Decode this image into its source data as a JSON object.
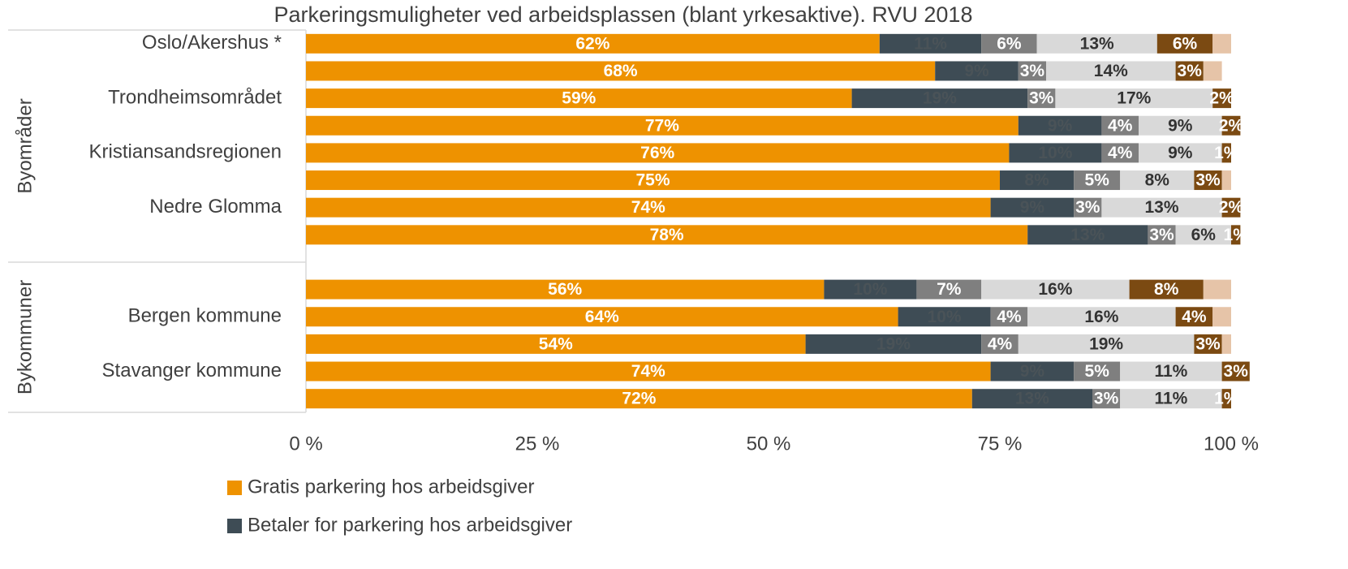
{
  "chart_data": {
    "type": "stacked-barh",
    "title": "Parkeringsmuligheter ved arbeidsplassen (blant yrkesaktive). RVU 2018",
    "categories": [
      "Oslo/Akershus *",
      null,
      "Trondheimsområdet",
      null,
      "Kristiansandsregionen",
      null,
      "Nedre Glomma",
      null,
      null,
      null,
      "Bergen kommune",
      null,
      "Stavanger kommune",
      null
    ],
    "groups": [
      {
        "label": "Byområder",
        "rows": [
          0,
          7
        ]
      },
      {
        "label": "Bykommuner",
        "rows": [
          9,
          13
        ]
      }
    ],
    "series": [
      {
        "name": "Gratis parkering hos arbeidsgiver",
        "color": "#ee9200",
        "values": [
          62,
          68,
          59,
          77,
          76,
          75,
          74,
          78,
          null,
          56,
          64,
          54,
          74,
          72
        ],
        "value_labels": [
          "62%",
          "68%",
          "59%",
          "77%",
          "76%",
          "75%",
          "74%",
          "78%",
          null,
          "56%",
          "64%",
          "54%",
          "74%",
          "72%"
        ]
      },
      {
        "name": "Betaler for parkering hos arbeidsgiver",
        "color": "#3e4c55",
        "values": [
          11,
          9,
          19,
          9,
          10,
          8,
          9,
          13,
          null,
          10,
          10,
          19,
          9,
          13
        ],
        "value_labels": [
          "11%",
          "9%",
          "19%",
          "9%",
          "10%",
          "8%",
          "9%",
          "13%",
          null,
          "10%",
          "10%",
          "19%",
          "9%",
          "13%"
        ]
      },
      {
        "color": "#7f7f7f",
        "values": [
          6,
          3,
          3,
          4,
          4,
          5,
          3,
          3,
          null,
          7,
          4,
          4,
          5,
          3
        ],
        "value_labels": [
          "6%",
          "3%",
          "3%",
          "4%",
          "4%",
          "5%",
          "3%",
          "3%",
          null,
          "7%",
          "4%",
          "4%",
          "5%",
          "3%"
        ]
      },
      {
        "color": "#d9d9d9",
        "values": [
          13,
          14,
          17,
          9,
          9,
          8,
          13,
          6,
          null,
          16,
          16,
          19,
          11,
          11
        ],
        "value_labels": [
          "13%",
          "14%",
          "17%",
          "9%",
          "9%",
          "8%",
          "13%",
          "6%",
          null,
          "16%",
          "16%",
          "19%",
          "11%",
          "11%"
        ]
      },
      {
        "color": "#7b4a12",
        "values": [
          6,
          3,
          2,
          2,
          1,
          3,
          2,
          1,
          null,
          8,
          4,
          3,
          3,
          1
        ],
        "value_labels": [
          "6%",
          "3%",
          "2%",
          "2%",
          "1%",
          "3%",
          "2%",
          "1%",
          null,
          "8%",
          "4%",
          "3%",
          "3%",
          "1%"
        ]
      },
      {
        "color": "#e6c4a8",
        "values": [
          2,
          2,
          0,
          0,
          0,
          1,
          0,
          0,
          null,
          3,
          2,
          1,
          0,
          0
        ]
      }
    ],
    "xlim": [
      0,
      100
    ],
    "xticks": [
      {
        "value": 0,
        "label": "0 %"
      },
      {
        "value": 25,
        "label": "25 %"
      },
      {
        "value": 50,
        "label": "50 %"
      },
      {
        "value": 75,
        "label": "75 %"
      },
      {
        "value": 100,
        "label": "100 %"
      }
    ],
    "grid": false,
    "legend": "bottom"
  }
}
